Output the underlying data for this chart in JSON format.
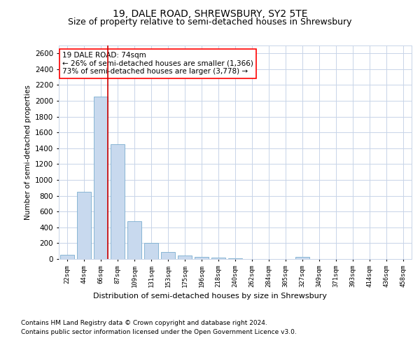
{
  "title": "19, DALE ROAD, SHREWSBURY, SY2 5TE",
  "subtitle": "Size of property relative to semi-detached houses in Shrewsbury",
  "xlabel": "Distribution of semi-detached houses by size in Shrewsbury",
  "ylabel": "Number of semi-detached properties",
  "footnote1": "Contains HM Land Registry data © Crown copyright and database right 2024.",
  "footnote2": "Contains public sector information licensed under the Open Government Licence v3.0.",
  "categories": [
    "22sqm",
    "44sqm",
    "66sqm",
    "87sqm",
    "109sqm",
    "131sqm",
    "153sqm",
    "175sqm",
    "196sqm",
    "218sqm",
    "240sqm",
    "262sqm",
    "284sqm",
    "305sqm",
    "327sqm",
    "349sqm",
    "371sqm",
    "393sqm",
    "414sqm",
    "436sqm",
    "458sqm"
  ],
  "values": [
    50,
    850,
    2050,
    1450,
    480,
    200,
    90,
    40,
    25,
    15,
    5,
    2,
    1,
    1,
    30,
    1,
    0,
    0,
    0,
    0,
    0
  ],
  "bar_color": "#c8d9ee",
  "bar_edge_color": "#7aaecf",
  "vline_color": "#cc0000",
  "annotation_line1": "19 DALE ROAD: 74sqm",
  "annotation_line2": "← 26% of semi-detached houses are smaller (1,366)",
  "annotation_line3": "73% of semi-detached houses are larger (3,778) →",
  "ylim": [
    0,
    2700
  ],
  "yticks": [
    0,
    200,
    400,
    600,
    800,
    1000,
    1200,
    1400,
    1600,
    1800,
    2000,
    2200,
    2400,
    2600
  ],
  "background_color": "#ffffff",
  "grid_color": "#c8d4e8",
  "title_fontsize": 10,
  "subtitle_fontsize": 9,
  "footnote_fontsize": 6.5
}
